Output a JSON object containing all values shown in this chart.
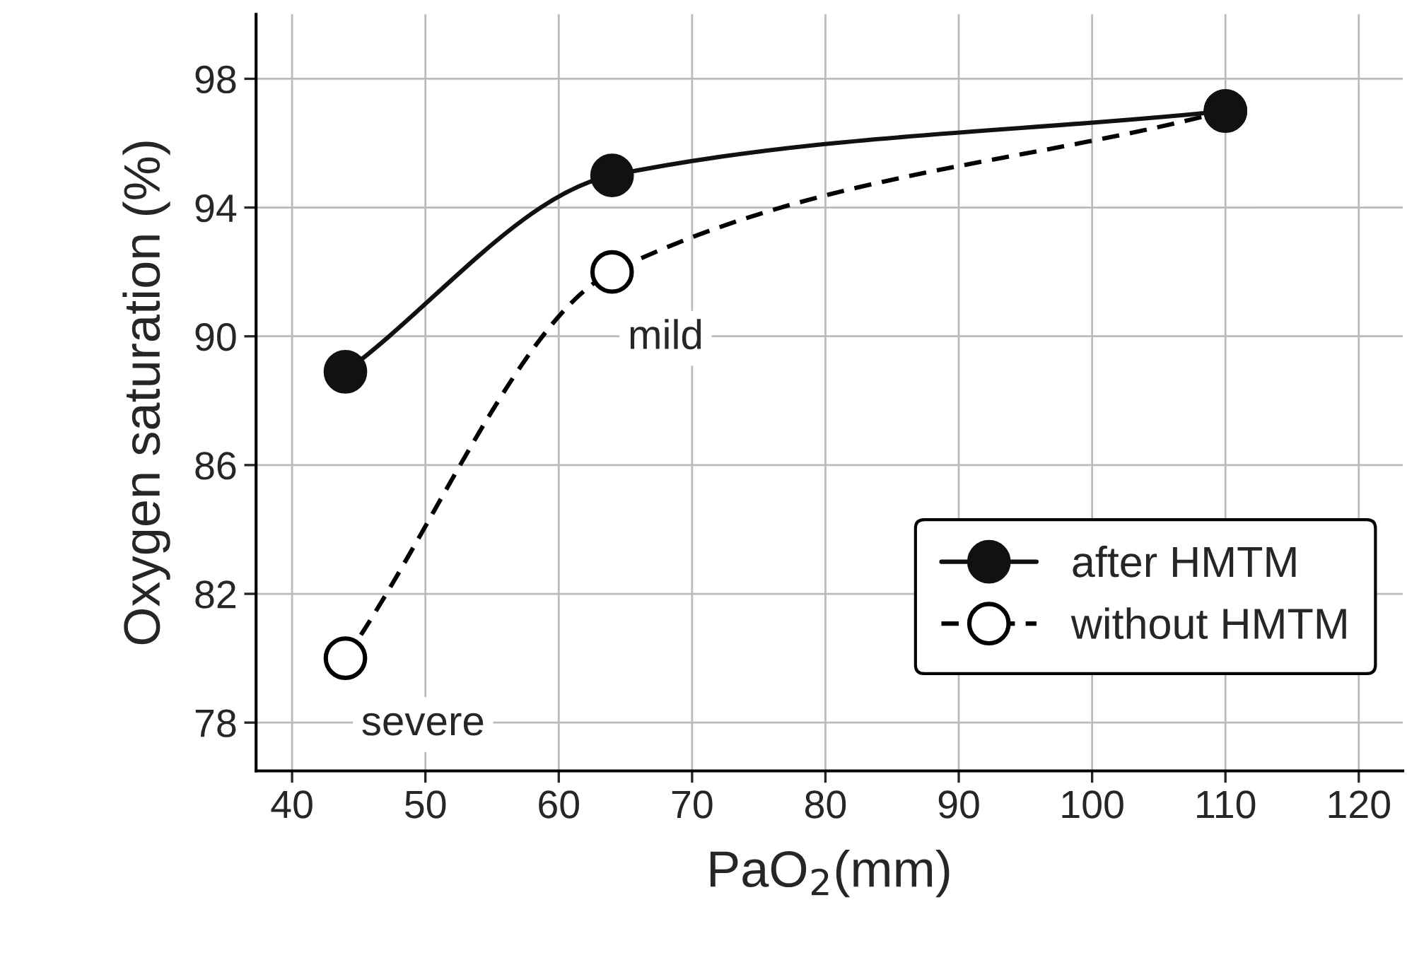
{
  "chart_data": {
    "type": "line",
    "xlabel": "PaO$_{2}$(mm)",
    "ylabel": "Oxygen saturation (%)",
    "x": [
      44,
      64,
      110
    ],
    "series": [
      {
        "name": "after HMTM",
        "color": "#111111",
        "values": [
          88.9,
          95.0,
          97.0
        ],
        "line_style": "solid"
      },
      {
        "name": "without HMTM",
        "color": "#000000",
        "values": [
          80.0,
          92.0,
          97.0
        ],
        "line_style": "dashed"
      }
    ],
    "xlim": [
      37.3,
      123.3
    ],
    "xticks": [
      40,
      50,
      60,
      70,
      80,
      90,
      100,
      110,
      120
    ],
    "ylim": [
      76.5,
      100
    ],
    "yticks": [
      78,
      82,
      86,
      90,
      94,
      98
    ],
    "annotations": [
      {
        "text": "mild",
        "x": 64,
        "y": 92
      },
      {
        "text": "severe",
        "x": 44,
        "y": 80
      }
    ],
    "grid": true,
    "legend": "bottom right",
    "marker": "circle"
  }
}
